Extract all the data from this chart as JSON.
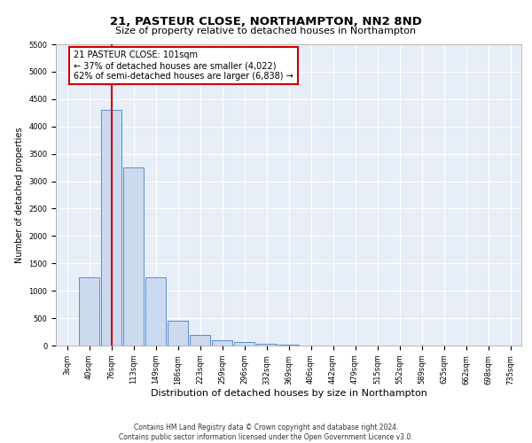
{
  "title1": "21, PASTEUR CLOSE, NORTHAMPTON, NN2 8ND",
  "title2": "Size of property relative to detached houses in Northampton",
  "xlabel": "Distribution of detached houses by size in Northampton",
  "ylabel": "Number of detached properties",
  "bin_labels": [
    "3sqm",
    "40sqm",
    "76sqm",
    "113sqm",
    "149sqm",
    "186sqm",
    "223sqm",
    "259sqm",
    "296sqm",
    "332sqm",
    "369sqm",
    "406sqm",
    "442sqm",
    "479sqm",
    "515sqm",
    "552sqm",
    "589sqm",
    "625sqm",
    "662sqm",
    "698sqm",
    "735sqm"
  ],
  "bar_values": [
    0,
    1250,
    4300,
    3250,
    1250,
    450,
    200,
    100,
    60,
    30,
    10,
    5,
    2,
    0,
    0,
    0,
    0,
    0,
    0,
    0,
    0
  ],
  "bar_color": "#ccdaf0",
  "bar_edge_color": "#5b8bd0",
  "vline_color": "#cc0000",
  "annotation_text": "21 PASTEUR CLOSE: 101sqm\n← 37% of detached houses are smaller (4,022)\n62% of semi-detached houses are larger (6,838) →",
  "annotation_box_color": "#ffffff",
  "annotation_box_edge": "#cc0000",
  "ylim": [
    0,
    5500
  ],
  "yticks": [
    0,
    500,
    1000,
    1500,
    2000,
    2500,
    3000,
    3500,
    4000,
    4500,
    5000,
    5500
  ],
  "background_color": "#e8eef8",
  "grid_color": "#ffffff",
  "footer_text": "Contains HM Land Registry data © Crown copyright and database right 2024.\nContains public sector information licensed under the Open Government Licence v3.0.",
  "title1_fontsize": 9.5,
  "title2_fontsize": 8,
  "xlabel_fontsize": 8,
  "ylabel_fontsize": 7,
  "tick_fontsize": 6,
  "annotation_fontsize": 7,
  "footer_fontsize": 5.5
}
